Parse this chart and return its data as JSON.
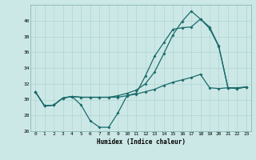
{
  "title": "",
  "xlabel": "Humidex (Indice chaleur)",
  "ylabel": "",
  "bg_color": "#cce8e6",
  "line_color": "#1a6b6b",
  "grid_color": "#afd4d2",
  "xlim": [
    -0.5,
    23.5
  ],
  "ylim": [
    26,
    42
  ],
  "yticks": [
    26,
    28,
    30,
    32,
    34,
    36,
    38,
    40
  ],
  "xticks": [
    0,
    1,
    2,
    3,
    4,
    5,
    6,
    7,
    8,
    9,
    10,
    11,
    12,
    13,
    14,
    15,
    16,
    17,
    18,
    19,
    20,
    21,
    22,
    23
  ],
  "line1_x": [
    0,
    1,
    2,
    3,
    4,
    5,
    6,
    7,
    8,
    9,
    10,
    11,
    12,
    13,
    14,
    15,
    16,
    17,
    18,
    19,
    20,
    21,
    22,
    23
  ],
  "line1_y": [
    31.0,
    29.2,
    29.3,
    30.2,
    30.4,
    29.3,
    27.3,
    26.5,
    26.5,
    28.3,
    30.5,
    30.8,
    33.0,
    35.5,
    37.2,
    38.9,
    39.1,
    39.2,
    40.2,
    39.0,
    36.7,
    31.5,
    31.4,
    31.6
  ],
  "line2_x": [
    0,
    1,
    2,
    3,
    4,
    5,
    6,
    7,
    8,
    9,
    10,
    11,
    12,
    13,
    14,
    15,
    16,
    17,
    18,
    19,
    20,
    21,
    22,
    23
  ],
  "line2_y": [
    31.0,
    29.2,
    29.3,
    30.2,
    30.4,
    30.3,
    30.3,
    30.3,
    30.3,
    30.3,
    30.5,
    30.7,
    31.0,
    31.3,
    31.8,
    32.2,
    32.5,
    32.8,
    33.2,
    31.5,
    31.4,
    31.5,
    31.5,
    31.6
  ],
  "line3_x": [
    0,
    1,
    2,
    3,
    4,
    5,
    6,
    7,
    8,
    9,
    10,
    11,
    12,
    13,
    14,
    15,
    16,
    17,
    18,
    19,
    20,
    21,
    22,
    23
  ],
  "line3_y": [
    31.0,
    29.2,
    29.3,
    30.2,
    30.4,
    30.3,
    30.3,
    30.3,
    30.3,
    30.5,
    30.8,
    31.2,
    32.0,
    33.5,
    35.8,
    38.2,
    39.9,
    41.2,
    40.2,
    39.2,
    36.8,
    31.5,
    31.4,
    31.6
  ]
}
